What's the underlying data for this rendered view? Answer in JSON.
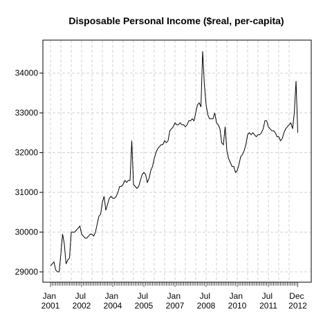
{
  "chart_data": {
    "type": "line",
    "title": "Disposable Personal Income ($real, per-capita)",
    "categories": [
      "Jan 2001",
      null,
      null,
      null,
      null,
      null,
      null,
      null,
      null,
      null,
      null,
      null,
      null,
      null,
      null,
      null,
      null,
      null,
      "Jul 2002",
      null,
      null,
      null,
      null,
      null,
      null,
      null,
      null,
      null,
      null,
      null,
      null,
      null,
      null,
      null,
      null,
      null,
      "Jan 2004",
      null,
      null,
      null,
      null,
      null,
      null,
      null,
      null,
      null,
      null,
      null,
      null,
      null,
      null,
      null,
      null,
      null,
      "Jul 2005",
      null,
      null,
      null,
      null,
      null,
      null,
      null,
      null,
      null,
      null,
      null,
      null,
      null,
      null,
      null,
      null,
      null,
      "Jan 2007",
      null,
      null,
      null,
      null,
      null,
      null,
      null,
      null,
      null,
      null,
      null,
      null,
      null,
      null,
      null,
      null,
      null,
      "Jul 2008",
      null,
      null,
      null,
      null,
      null,
      null,
      null,
      null,
      null,
      null,
      null,
      null,
      null,
      null,
      null,
      null,
      null,
      "Jan 2010",
      null,
      null,
      null,
      null,
      null,
      null,
      null,
      null,
      null,
      null,
      null,
      null,
      null,
      null,
      null,
      null,
      null,
      "Jul 2011",
      null,
      null,
      null,
      null,
      null,
      null,
      null,
      null,
      null,
      null,
      null,
      null,
      null,
      null,
      null,
      null,
      "Dec 2012"
    ],
    "values": [
      29150,
      29200,
      29250,
      29050,
      29000,
      29000,
      29450,
      29950,
      29700,
      29200,
      29300,
      29350,
      30000,
      30000,
      30000,
      30050,
      30100,
      30150,
      29950,
      29900,
      29850,
      29850,
      29900,
      29950,
      29950,
      29900,
      30000,
      30200,
      30400,
      30450,
      30750,
      30900,
      30550,
      30700,
      30850,
      30900,
      30850,
      30850,
      30900,
      31000,
      31150,
      31150,
      31200,
      31300,
      31250,
      31300,
      31300,
      32300,
      31200,
      31150,
      31100,
      31150,
      31300,
      31450,
      31500,
      31450,
      31250,
      31350,
      31550,
      31650,
      31850,
      32000,
      32100,
      32150,
      32200,
      32200,
      32300,
      32250,
      32300,
      32550,
      32600,
      32650,
      32750,
      32700,
      32700,
      32750,
      32700,
      32700,
      32650,
      32700,
      32800,
      32800,
      32850,
      32800,
      33000,
      33200,
      33250,
      33150,
      34550,
      33700,
      33200,
      32950,
      32850,
      32850,
      32850,
      33000,
      32750,
      32700,
      32600,
      32250,
      32200,
      32650,
      32050,
      31850,
      31750,
      31650,
      31650,
      31500,
      31550,
      31700,
      31900,
      31950,
      32050,
      32200,
      32450,
      32500,
      32450,
      32500,
      32450,
      32400,
      32450,
      32450,
      32500,
      32600,
      32800,
      32800,
      32650,
      32600,
      32550,
      32550,
      32500,
      32400,
      32400,
      32300,
      32350,
      32500,
      32600,
      32650,
      32700,
      32750,
      32600,
      33000,
      33800,
      32500
    ],
    "color": "#000000",
    "ylim": [
      28740,
      34830
    ],
    "yticks": [
      29000,
      30000,
      31000,
      32000,
      33000,
      34000
    ],
    "grid": true
  }
}
